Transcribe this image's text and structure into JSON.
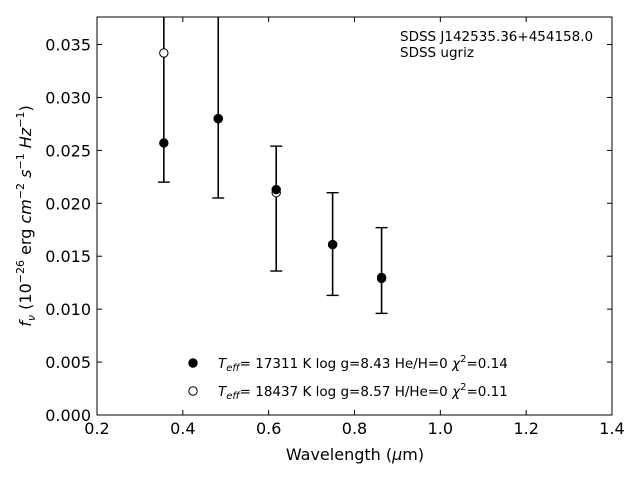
{
  "chart_data": {
    "type": "scatter",
    "title": "",
    "xlabel": "Wavelength (μm)",
    "ylabel": "f_ν (10^-26 erg cm^-2 s^-1 Hz^-1)",
    "xlim": [
      0.2,
      1.4
    ],
    "ylim": [
      0.0,
      0.0376
    ],
    "x_ticks": [
      "0.2",
      "0.4",
      "0.6",
      "0.8",
      "1.0",
      "1.2",
      "1.4"
    ],
    "y_ticks": [
      "0.000",
      "0.005",
      "0.010",
      "0.015",
      "0.020",
      "0.025",
      "0.030",
      "0.035"
    ],
    "grid": false,
    "legend_position": "bottom-center",
    "annotations": [
      "SDSS J142535.36+454158.0",
      "SDSS ugriz"
    ],
    "observed": {
      "x": [
        0.3557,
        0.4825,
        0.6176,
        0.749,
        0.8631
      ],
      "y": [
        0.0257,
        0.028,
        0.0212,
        0.0161,
        0.013
      ],
      "yerr_low": [
        0.022,
        0.0205,
        0.0136,
        0.0113,
        0.0096
      ],
      "yerr_high": [
        0.0376,
        0.0376,
        0.0254,
        0.021,
        0.0177
      ],
      "top_cap": [
        false,
        false,
        true,
        true,
        true
      ]
    },
    "series": [
      {
        "name": "Teff= 17311 K log g=8.43 He/H=0 χ2=0.14",
        "marker": "filled-circle",
        "x": [
          0.3557,
          0.4825,
          0.6176,
          0.749,
          0.8631
        ],
        "y": [
          0.0257,
          0.028,
          0.0213,
          0.0161,
          0.013
        ]
      },
      {
        "name": "Teff= 18437 K log g=8.57 H/He=0 χ2=0.11",
        "marker": "open-circle",
        "x": [
          0.3557,
          0.4825,
          0.6176,
          0.749,
          0.8631
        ],
        "y": [
          0.0342,
          0.028,
          0.021,
          0.0161,
          0.0129
        ]
      }
    ]
  },
  "annotation": {
    "object": "SDSS J142535.36+454158.0",
    "filters": "SDSS ugriz"
  },
  "legend": {
    "item1": {
      "teff_val": "= 17311 K  log g=8.43  He/H=0  ",
      "chi_val": "=0.14"
    },
    "item2": {
      "teff_val": "= 18437 K  log g=8.57  H/He=0  ",
      "chi_val": "=0.11"
    }
  }
}
